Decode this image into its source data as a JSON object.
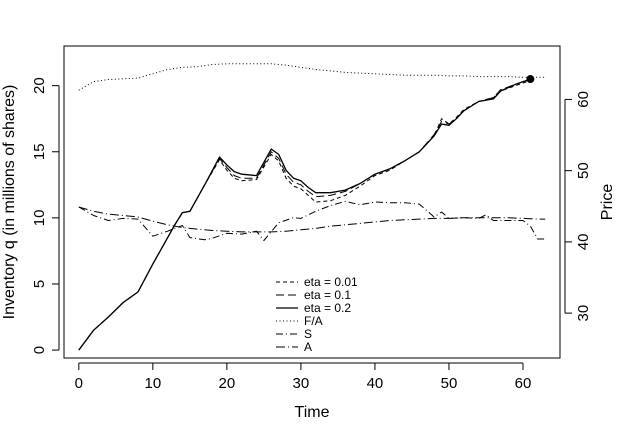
{
  "chart_data": {
    "type": "line",
    "title": "",
    "xlabel": "Time",
    "ylabel_left": "Inventory q (in millions of shares)",
    "ylabel_right": "Price",
    "xlim": [
      -2,
      65
    ],
    "ylim_left": [
      -0.6,
      23
    ],
    "ylim_right": [
      23.7,
      67.5
    ],
    "x_ticks": [
      0,
      10,
      20,
      30,
      40,
      50,
      60
    ],
    "y_left_ticks": [
      0,
      5,
      10,
      15,
      20
    ],
    "y_right_ticks": [
      30,
      40,
      50,
      60
    ],
    "grid": false,
    "legend_position": "bottom-center",
    "series": [
      {
        "name": "eta = 0.01",
        "axis": "left",
        "dash": "4,3",
        "width": 1,
        "points": [
          [
            0,
            0
          ],
          [
            2,
            1.5
          ],
          [
            4,
            2.5
          ],
          [
            6,
            3.6
          ],
          [
            8,
            4.4
          ],
          [
            10,
            6.5
          ],
          [
            12,
            8.5
          ],
          [
            13,
            9.5
          ],
          [
            14,
            10.4
          ],
          [
            15,
            10.5
          ],
          [
            17,
            12.5
          ],
          [
            19,
            14.4
          ],
          [
            20,
            13.6
          ],
          [
            21,
            13
          ],
          [
            22,
            12.8
          ],
          [
            24,
            12.9
          ],
          [
            26,
            14.8
          ],
          [
            27,
            14.3
          ],
          [
            28,
            13
          ],
          [
            29,
            12.4
          ],
          [
            30,
            12.2
          ],
          [
            31,
            11.7
          ],
          [
            32,
            11.2
          ],
          [
            34,
            11.3
          ],
          [
            36,
            11.7
          ],
          [
            38,
            12.4
          ],
          [
            40,
            13.2
          ],
          [
            42,
            13.6
          ],
          [
            44,
            14.3
          ],
          [
            46,
            15
          ],
          [
            48,
            16.2
          ],
          [
            49,
            17.5
          ],
          [
            50,
            17.1
          ],
          [
            51,
            17.6
          ],
          [
            52,
            18.2
          ],
          [
            54,
            18.8
          ],
          [
            56,
            19.1
          ],
          [
            57,
            19.6
          ],
          [
            59,
            20
          ],
          [
            61,
            20.4
          ]
        ]
      },
      {
        "name": "eta = 0.1",
        "axis": "left",
        "dash": "8,4",
        "width": 1,
        "points": [
          [
            0,
            0
          ],
          [
            2,
            1.5
          ],
          [
            4,
            2.5
          ],
          [
            6,
            3.6
          ],
          [
            8,
            4.4
          ],
          [
            10,
            6.5
          ],
          [
            12,
            8.5
          ],
          [
            13,
            9.5
          ],
          [
            14,
            10.4
          ],
          [
            15,
            10.5
          ],
          [
            17,
            12.5
          ],
          [
            19,
            14.5
          ],
          [
            20,
            13.8
          ],
          [
            21,
            13.2
          ],
          [
            22,
            13
          ],
          [
            24,
            13
          ],
          [
            26,
            15
          ],
          [
            27,
            14.5
          ],
          [
            28,
            13.3
          ],
          [
            29,
            12.7
          ],
          [
            30,
            12.5
          ],
          [
            31,
            12
          ],
          [
            32,
            11.6
          ],
          [
            34,
            11.7
          ],
          [
            36,
            12
          ],
          [
            38,
            12.6
          ],
          [
            40,
            13.3
          ],
          [
            42,
            13.7
          ],
          [
            44,
            14.3
          ],
          [
            46,
            15
          ],
          [
            48,
            16.3
          ],
          [
            49,
            17.3
          ],
          [
            50,
            17.1
          ],
          [
            51,
            17.5
          ],
          [
            52,
            18.1
          ],
          [
            54,
            18.8
          ],
          [
            56,
            19.1
          ],
          [
            57,
            19.7
          ],
          [
            59,
            20.1
          ],
          [
            61,
            20.5
          ]
        ]
      },
      {
        "name": "eta = 0.2",
        "axis": "left",
        "dash": "",
        "width": 1.3,
        "points": [
          [
            0,
            0
          ],
          [
            2,
            1.5
          ],
          [
            4,
            2.5
          ],
          [
            6,
            3.6
          ],
          [
            8,
            4.4
          ],
          [
            10,
            6.5
          ],
          [
            12,
            8.5
          ],
          [
            13,
            9.5
          ],
          [
            14,
            10.4
          ],
          [
            15,
            10.5
          ],
          [
            17,
            12.5
          ],
          [
            19,
            14.6
          ],
          [
            20,
            14
          ],
          [
            21,
            13.5
          ],
          [
            22,
            13.3
          ],
          [
            24,
            13.2
          ],
          [
            26,
            15.2
          ],
          [
            27,
            14.8
          ],
          [
            28,
            13.6
          ],
          [
            29,
            13
          ],
          [
            30,
            12.8
          ],
          [
            31,
            12.3
          ],
          [
            32,
            11.9
          ],
          [
            34,
            11.9
          ],
          [
            36,
            12.1
          ],
          [
            38,
            12.6
          ],
          [
            40,
            13.3
          ],
          [
            42,
            13.7
          ],
          [
            44,
            14.3
          ],
          [
            46,
            15
          ],
          [
            48,
            16.2
          ],
          [
            49,
            17.1
          ],
          [
            50,
            17
          ],
          [
            51,
            17.5
          ],
          [
            52,
            18.1
          ],
          [
            54,
            18.8
          ],
          [
            56,
            19
          ],
          [
            57,
            19.6
          ],
          [
            59,
            20.1
          ],
          [
            61,
            20.5
          ]
        ]
      },
      {
        "name": "F/A",
        "axis": "right",
        "dash": "1,2.5",
        "width": 1,
        "points": [
          [
            0,
            61.3
          ],
          [
            2,
            62.5
          ],
          [
            4,
            62.8
          ],
          [
            6,
            62.9
          ],
          [
            8,
            63
          ],
          [
            10,
            63.6
          ],
          [
            12,
            64.2
          ],
          [
            14,
            64.5
          ],
          [
            16,
            64.6
          ],
          [
            18,
            64.9
          ],
          [
            20,
            65
          ],
          [
            22,
            65
          ],
          [
            24,
            65
          ],
          [
            26,
            65
          ],
          [
            28,
            64.8
          ],
          [
            30,
            64.5
          ],
          [
            32,
            64.2
          ],
          [
            34,
            64
          ],
          [
            36,
            63.8
          ],
          [
            38,
            63.7
          ],
          [
            40,
            63.6
          ],
          [
            42,
            63.5
          ],
          [
            44,
            63.4
          ],
          [
            46,
            63.4
          ],
          [
            48,
            63.4
          ],
          [
            50,
            63.3
          ],
          [
            52,
            63.3
          ],
          [
            54,
            63.2
          ],
          [
            56,
            63.2
          ],
          [
            58,
            63.2
          ],
          [
            60,
            63.1
          ],
          [
            62,
            63.1
          ],
          [
            63,
            63.1
          ]
        ]
      },
      {
        "name": "S",
        "axis": "right",
        "dash": "7,3,1,3",
        "width": 1,
        "points": [
          [
            0,
            44.9
          ],
          [
            2,
            43.7
          ],
          [
            4,
            43
          ],
          [
            6,
            43.3
          ],
          [
            8,
            43.2
          ],
          [
            10,
            40.8
          ],
          [
            12,
            41.5
          ],
          [
            14,
            42.3
          ],
          [
            15,
            40.6
          ],
          [
            17,
            40.3
          ],
          [
            18,
            40.5
          ],
          [
            20,
            41.2
          ],
          [
            22,
            41.1
          ],
          [
            24,
            41.5
          ],
          [
            25,
            40.2
          ],
          [
            27,
            42.7
          ],
          [
            29,
            43.4
          ],
          [
            30,
            43.3
          ],
          [
            32,
            44.3
          ],
          [
            34,
            45.1
          ],
          [
            36,
            45.7
          ],
          [
            38,
            45.2
          ],
          [
            40,
            45.6
          ],
          [
            42,
            45.5
          ],
          [
            44,
            45.5
          ],
          [
            46,
            45.3
          ],
          [
            48,
            43.5
          ],
          [
            49,
            44.2
          ],
          [
            50,
            43.3
          ],
          [
            52,
            43.4
          ],
          [
            54,
            43.3
          ],
          [
            55,
            43.8
          ],
          [
            56,
            43
          ],
          [
            58,
            43
          ],
          [
            60,
            43
          ],
          [
            61,
            42.2
          ],
          [
            62,
            40.4
          ],
          [
            63,
            40.4
          ]
        ]
      },
      {
        "name": "A",
        "axis": "right",
        "dash": "9,3,1,3",
        "width": 1,
        "points": [
          [
            0,
            44.9
          ],
          [
            2,
            44.3
          ],
          [
            4,
            43.9
          ],
          [
            6,
            43.7
          ],
          [
            8,
            43.5
          ],
          [
            10,
            42.9
          ],
          [
            12,
            42.4
          ],
          [
            14,
            42
          ],
          [
            16,
            41.8
          ],
          [
            18,
            41.6
          ],
          [
            20,
            41.5
          ],
          [
            22,
            41.4
          ],
          [
            24,
            41.4
          ],
          [
            26,
            41.4
          ],
          [
            28,
            41.5
          ],
          [
            30,
            41.7
          ],
          [
            32,
            41.9
          ],
          [
            34,
            42.2
          ],
          [
            36,
            42.4
          ],
          [
            38,
            42.6
          ],
          [
            40,
            42.8
          ],
          [
            42,
            43
          ],
          [
            44,
            43.1
          ],
          [
            46,
            43.2
          ],
          [
            48,
            43.3
          ],
          [
            50,
            43.3
          ],
          [
            52,
            43.4
          ],
          [
            54,
            43.4
          ],
          [
            56,
            43.4
          ],
          [
            58,
            43.4
          ],
          [
            60,
            43.3
          ],
          [
            62,
            43.2
          ],
          [
            63,
            43.2
          ]
        ]
      }
    ],
    "end_marker": {
      "x": 61,
      "y": 20.5,
      "axis": "left"
    }
  }
}
